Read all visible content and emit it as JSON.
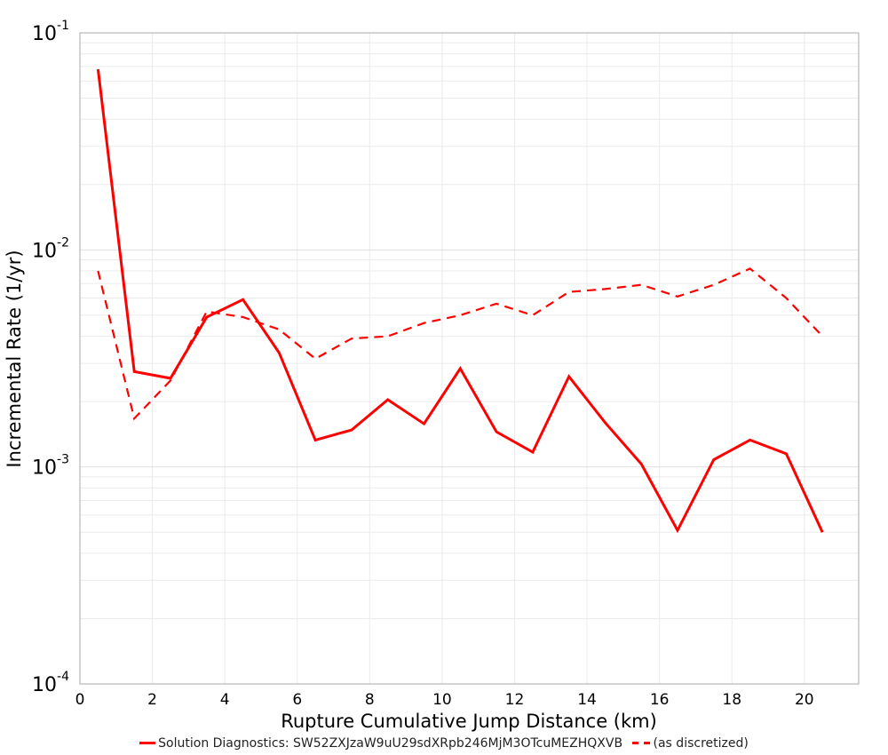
{
  "chart_data": {
    "type": "line",
    "title": "",
    "xlabel": "Rupture Cumulative Jump Distance (km)",
    "ylabel": "Incremental Rate (1/yr)",
    "xlim": [
      0,
      21.5
    ],
    "ylim": [
      0.0001,
      0.1
    ],
    "yscale": "log",
    "grid": true,
    "legend_position": "bottom",
    "x_ticks": [
      0,
      2,
      4,
      6,
      8,
      10,
      12,
      14,
      16,
      18,
      20
    ],
    "y_ticks": [
      {
        "base": "10",
        "exp": "-1",
        "value": 0.1
      },
      {
        "base": "10",
        "exp": "-2",
        "value": 0.01
      },
      {
        "base": "10",
        "exp": "-3",
        "value": 0.001
      },
      {
        "base": "10",
        "exp": "-4",
        "value": 0.0001
      }
    ],
    "x": [
      0.5,
      1.5,
      2.5,
      3.5,
      4.5,
      5.5,
      6.5,
      7.5,
      8.5,
      9.5,
      10.5,
      11.5,
      12.5,
      13.5,
      14.5,
      15.5,
      16.5,
      17.5,
      18.5,
      19.5,
      20.5
    ],
    "series": [
      {
        "name": "Solution Diagnostics: SW52ZXJzaW9uU29sdXRpb246MjM3OTcuMEZHQXVB",
        "style": "solid",
        "color": "#ff0000",
        "values": [
          0.068,
          0.00275,
          0.00256,
          0.0049,
          0.0059,
          0.00336,
          0.00133,
          0.00148,
          0.00204,
          0.00158,
          0.00284,
          0.00145,
          0.00117,
          0.00261,
          0.0016,
          0.00103,
          0.00051,
          0.00108,
          0.00133,
          0.00115,
          0.0005
        ]
      },
      {
        "name": "(as discretized)",
        "style": "dashed",
        "color": "#ff0000",
        "values": [
          0.008,
          0.00167,
          0.0025,
          0.0052,
          0.0049,
          0.0043,
          0.00315,
          0.0039,
          0.004,
          0.0046,
          0.005,
          0.00565,
          0.005,
          0.0064,
          0.0066,
          0.0069,
          0.0061,
          0.0069,
          0.0082,
          0.006,
          0.004
        ]
      }
    ]
  },
  "legend": {
    "solid_label": "Solution Diagnostics: SW52ZXJzaW9uU29sdXRpb246MjM3OTcuMEZHQXVB",
    "dashed_label": "(as discretized)"
  }
}
